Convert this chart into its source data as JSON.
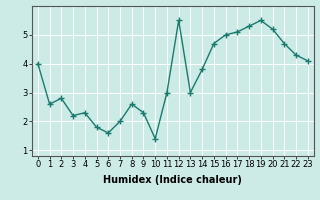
{
  "x": [
    0,
    1,
    2,
    3,
    4,
    5,
    6,
    7,
    8,
    9,
    10,
    11,
    12,
    13,
    14,
    15,
    16,
    17,
    18,
    19,
    20,
    21,
    22,
    23
  ],
  "y": [
    4.0,
    2.6,
    2.8,
    2.2,
    2.3,
    1.8,
    1.6,
    2.0,
    2.6,
    2.3,
    1.4,
    3.0,
    5.5,
    3.0,
    3.8,
    4.7,
    5.0,
    5.1,
    5.3,
    5.5,
    5.2,
    4.7,
    4.3,
    4.1
  ],
  "xlabel": "Humidex (Indice chaleur)",
  "ylim": [
    0.8,
    6.0
  ],
  "xlim": [
    -0.5,
    23.5
  ],
  "line_color": "#1a7a6e",
  "bg_color": "#cceae6",
  "grid_color": "#ffffff",
  "xlabel_fontsize": 7,
  "tick_fontsize": 6,
  "yticks": [
    1,
    2,
    3,
    4,
    5
  ],
  "xticks": [
    0,
    1,
    2,
    3,
    4,
    5,
    6,
    7,
    8,
    9,
    10,
    11,
    12,
    13,
    14,
    15,
    16,
    17,
    18,
    19,
    20,
    21,
    22,
    23
  ]
}
